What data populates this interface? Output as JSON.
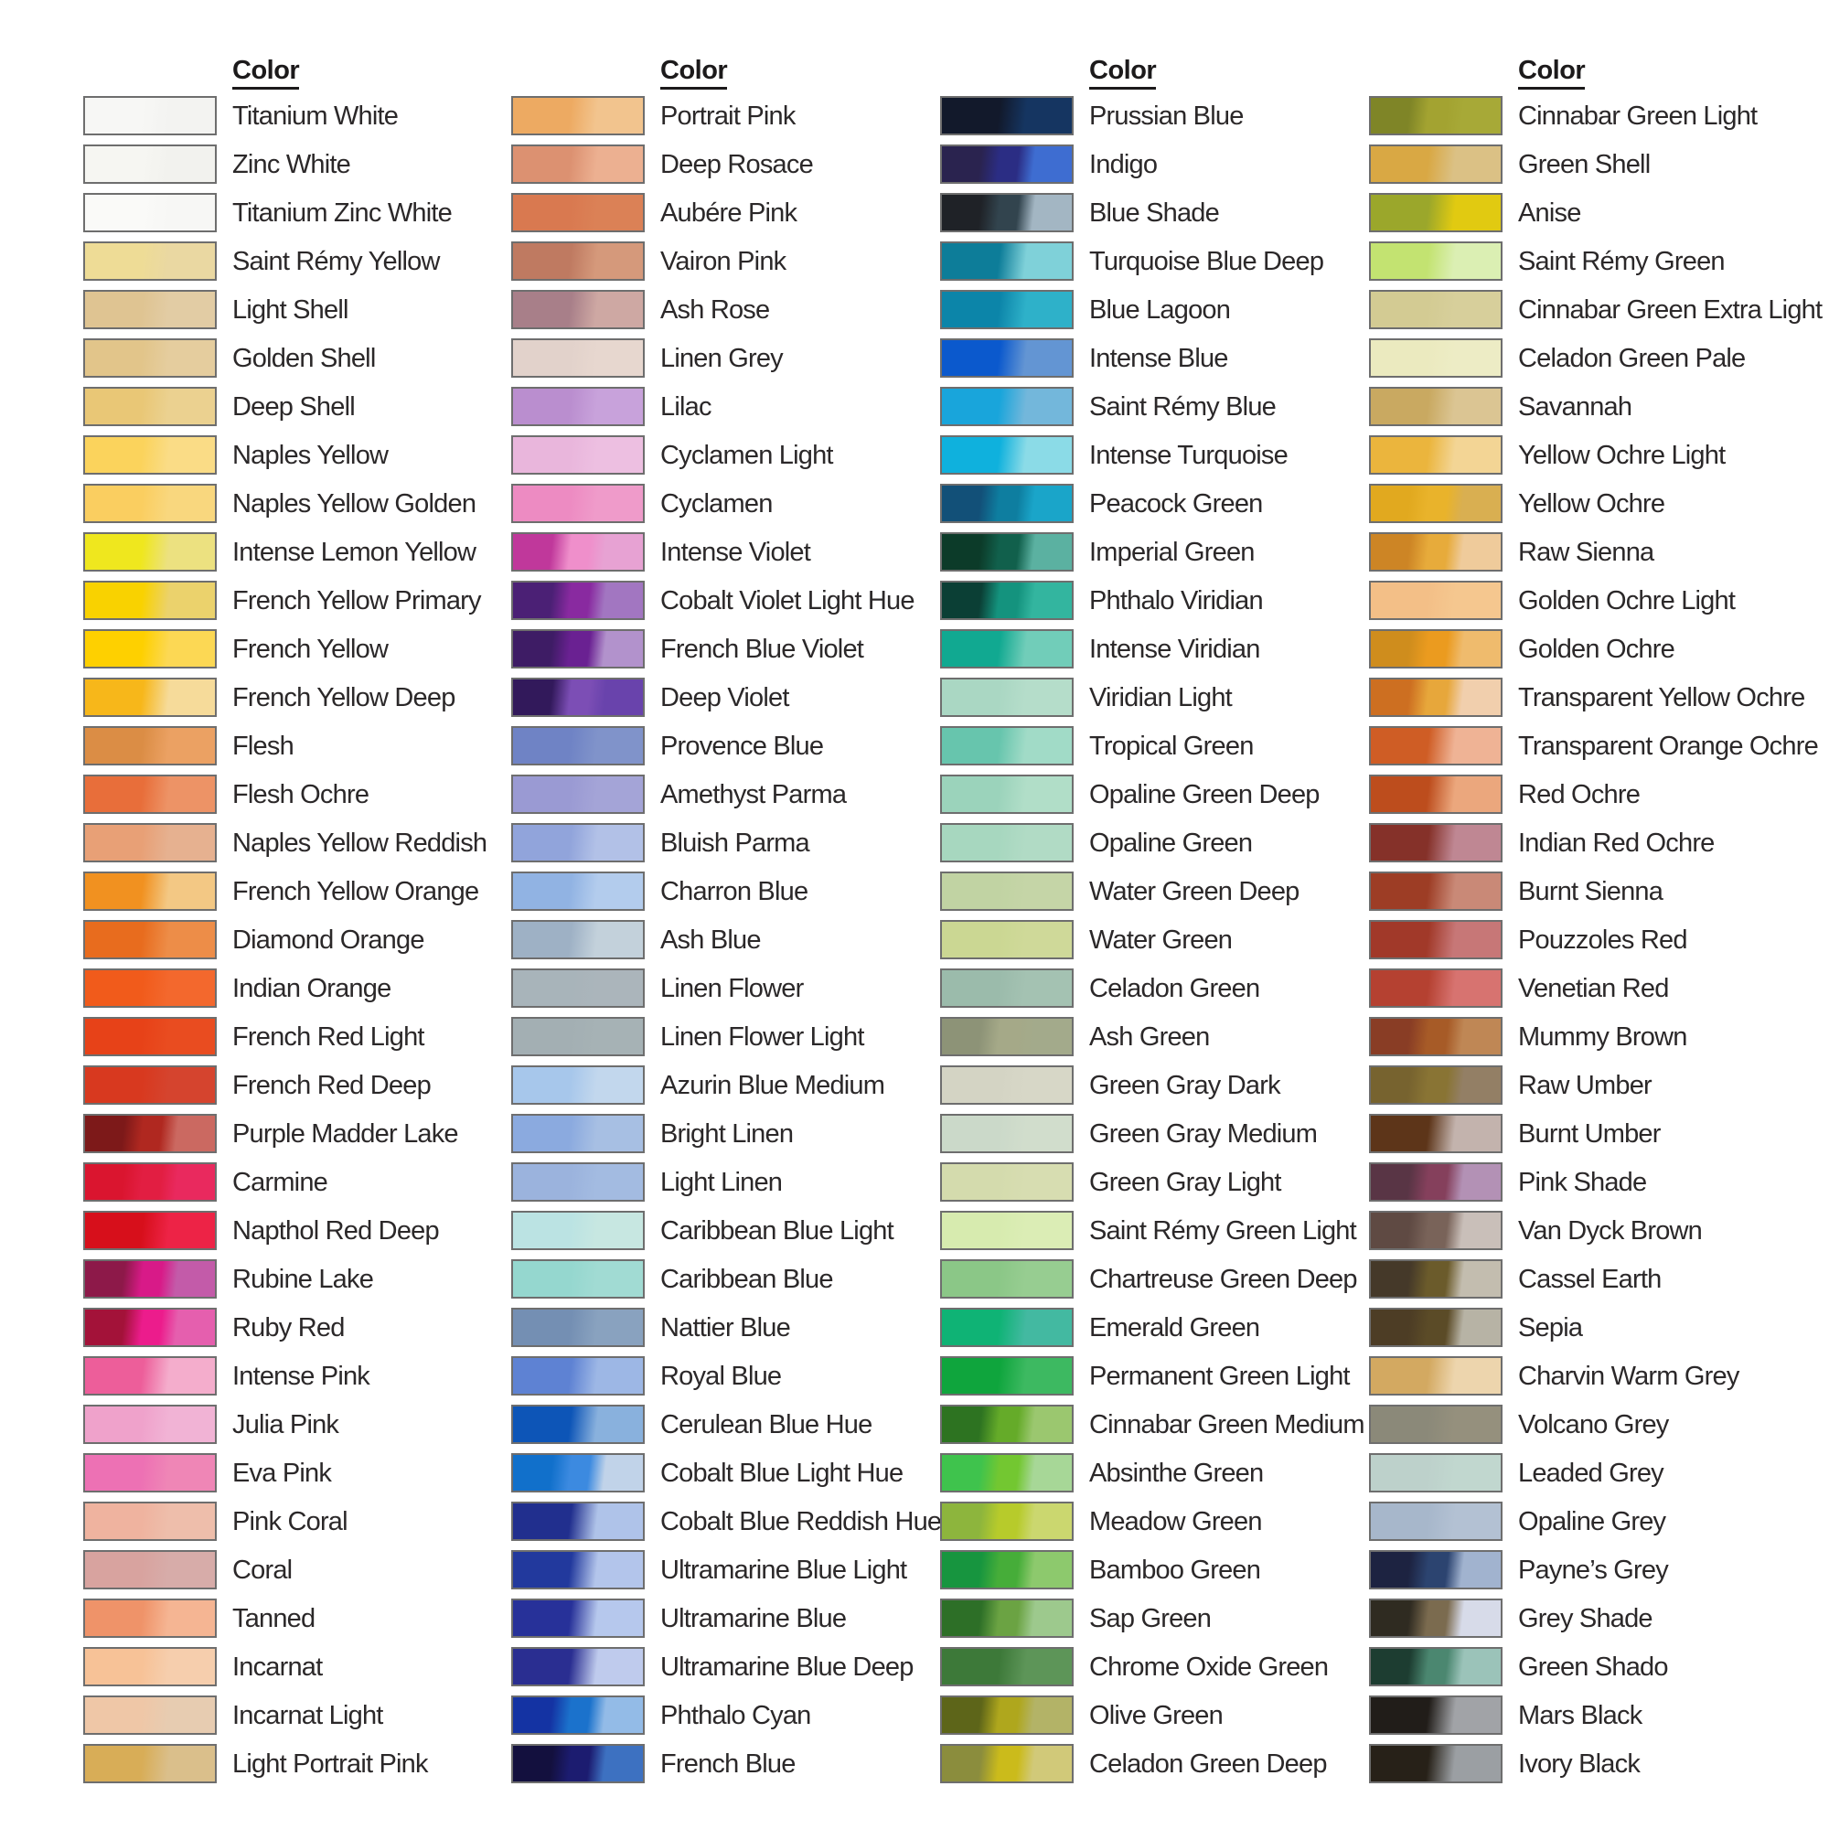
{
  "page": {
    "background": "#ffffff",
    "text_color": "#2b2829",
    "swatch_border_color": "#6e6e6e",
    "header_label": "Color"
  },
  "columns": [
    {
      "header": "Color",
      "rows": [
        {
          "name": "Titanium White",
          "left": "#f7f7f5",
          "right": "#f3f3f1"
        },
        {
          "name": "Zinc White",
          "left": "#f6f6f2",
          "right": "#f2f2ee"
        },
        {
          "name": "Titanium Zinc White",
          "left": "#fafaf8",
          "right": "#f7f7f5"
        },
        {
          "name": "Saint Rémy Yellow",
          "left": "#eedc96",
          "right": "#ead8a2"
        },
        {
          "name": "Light Shell",
          "left": "#dfc492",
          "right": "#e2cca4"
        },
        {
          "name": "Golden Shell",
          "left": "#e2c58a",
          "right": "#e5cd9e"
        },
        {
          "name": "Deep Shell",
          "left": "#e9c776",
          "right": "#ebd190"
        },
        {
          "name": "Naples Yellow",
          "left": "#fbd35c",
          "right": "#fadc86"
        },
        {
          "name": "Naples Yellow Golden",
          "left": "#face60",
          "right": "#f9d77e"
        },
        {
          "name": "Intense Lemon Yellow",
          "left": "#efe71e",
          "right": "#ece180"
        },
        {
          "name": "French Yellow Primary",
          "left": "#f9d200",
          "right": "#ebd26c"
        },
        {
          "name": "French Yellow",
          "left": "#fed000",
          "right": "#fcd854"
        },
        {
          "name": "French Yellow Deep",
          "left": "#f7b71a",
          "right": "#f6db9a"
        },
        {
          "name": "Flesh",
          "left": "#db8d45",
          "right": "#eba163"
        },
        {
          "name": "Flesh Ochre",
          "left": "#e86e3a",
          "right": "#ed9366"
        },
        {
          "name": "Naples Yellow Reddish",
          "left": "#e8a076",
          "right": "#e6b190"
        },
        {
          "name": "French Yellow Orange",
          "left": "#f19120",
          "right": "#f3c884"
        },
        {
          "name": "Diamond Orange",
          "left": "#e86c1e",
          "right": "#ed8d48"
        },
        {
          "name": "Indian Orange",
          "left": "#f15b1b",
          "right": "#f3682d"
        },
        {
          "name": "French Red Light",
          "left": "#e74218",
          "right": "#e94c20"
        },
        {
          "name": "French Red Deep",
          "left": "#d8391f",
          "right": "#d5442e"
        },
        {
          "name": "Purple Madder Lake",
          "left": "#7d1919",
          "mid": "#b02820",
          "right": "#cb6961"
        },
        {
          "name": "Carmine",
          "left": "#da152f",
          "mid": "#e21e42",
          "right": "#e9295e"
        },
        {
          "name": "Napthol Red Deep",
          "left": "#d70f1b",
          "right": "#ed2346"
        },
        {
          "name": "Rubine Lake",
          "left": "#8d1949",
          "mid": "#d81a88",
          "right": "#c35ba9"
        },
        {
          "name": "Ruby Red",
          "left": "#a31239",
          "mid": "#ec1c8c",
          "right": "#e55fae"
        },
        {
          "name": "Intense Pink",
          "left": "#ed5e9a",
          "right": "#f4adcc"
        },
        {
          "name": "Julia Pink",
          "left": "#efa2cb",
          "right": "#f1b3d5"
        },
        {
          "name": "Eva Pink",
          "left": "#ed71b4",
          "right": "#ef86b6"
        },
        {
          "name": "Pink Coral",
          "left": "#efb39f",
          "right": "#eebeab"
        },
        {
          "name": "Coral",
          "left": "#d8a39f",
          "right": "#d7aca9"
        },
        {
          "name": "Tanned",
          "left": "#ef9369",
          "right": "#f5b593"
        },
        {
          "name": "Incarnat",
          "left": "#f7c297",
          "right": "#f6cead"
        },
        {
          "name": "Incarnat Light",
          "left": "#efc7a7",
          "right": "#e7ccb1"
        },
        {
          "name": "Light Portrait Pink",
          "left": "#d8ad57",
          "right": "#dabf8b"
        }
      ]
    },
    {
      "header": "Color",
      "rows": [
        {
          "name": "Portrait Pink",
          "left": "#edaa62",
          "right": "#f2c48e"
        },
        {
          "name": "Deep Rosace",
          "left": "#dc9171",
          "right": "#ecb091"
        },
        {
          "name": "Aubére Pink",
          "left": "#d97950",
          "right": "#db8156"
        },
        {
          "name": "Vairon Pink",
          "left": "#bf7a61",
          "right": "#d5997b"
        },
        {
          "name": "Ash Rose",
          "left": "#a87f89",
          "right": "#cea8a3"
        },
        {
          "name": "Linen Grey",
          "left": "#e2d2cb",
          "right": "#e7d7cf"
        },
        {
          "name": "Lilac",
          "left": "#ba8ecf",
          "right": "#c8a2db"
        },
        {
          "name": "Cyclamen Light",
          "left": "#e9b6dc",
          "right": "#edbfe1"
        },
        {
          "name": "Cyclamen",
          "left": "#ed8bc2",
          "right": "#ef9bca"
        },
        {
          "name": "Intense Violet",
          "left": "#c0389b",
          "mid": "#ef8fcb",
          "right": "#e7a2d3"
        },
        {
          "name": "Cobalt Violet Light Hue",
          "left": "#4b2075",
          "mid": "#892aa0",
          "right": "#a276c1"
        },
        {
          "name": "French Blue Violet",
          "left": "#3e1c65",
          "mid": "#6a2192",
          "right": "#b292cc"
        },
        {
          "name": "Deep Violet",
          "left": "#32195b",
          "mid": "#7c4eb5",
          "right": "#6943ac"
        },
        {
          "name": "Provence Blue",
          "left": "#6f83c5",
          "right": "#8093ca"
        },
        {
          "name": "Amethyst Parma",
          "left": "#9a9ad3",
          "right": "#a4a4d7"
        },
        {
          "name": "Bluish Parma",
          "left": "#91a4db",
          "right": "#b2c1e7"
        },
        {
          "name": "Charron Blue",
          "left": "#91b3e3",
          "right": "#b3cced"
        },
        {
          "name": "Ash Blue",
          "left": "#9eb1c5",
          "right": "#c3d1db"
        },
        {
          "name": "Linen Flower",
          "left": "#a8b4ba",
          "right": "#abb5bb"
        },
        {
          "name": "Linen Flower Light",
          "left": "#a3afb3",
          "right": "#a6b2b5"
        },
        {
          "name": "Azurin Blue Medium",
          "left": "#a7c7eb",
          "right": "#c2d7ed"
        },
        {
          "name": "Bright Linen",
          "left": "#8baadf",
          "right": "#a7bfe3"
        },
        {
          "name": "Light Linen",
          "left": "#9bb3dd",
          "right": "#a3bbe1"
        },
        {
          "name": "Caribbean Blue Light",
          "left": "#bbe3e3",
          "right": "#c7e7e1"
        },
        {
          "name": "Caribbean Blue",
          "left": "#95d7cf",
          "right": "#a1dbd3"
        },
        {
          "name": "Nattier Blue",
          "left": "#748fb3",
          "right": "#89a2bf"
        },
        {
          "name": "Royal Blue",
          "left": "#5e82d3",
          "right": "#9db7e5"
        },
        {
          "name": "Cerulean Blue Hue",
          "left": "#0d55b7",
          "right": "#89b1dd"
        },
        {
          "name": "Cobalt Blue Light Hue",
          "left": "#1170cb",
          "mid": "#3c8ae0",
          "right": "#c1d3e9"
        },
        {
          "name": "Cobalt Blue Reddish Hue",
          "left": "#212f8e",
          "right": "#afc3e9"
        },
        {
          "name": "Ultramarine Blue Light",
          "left": "#22399d",
          "right": "#b3c5eb"
        },
        {
          "name": "Ultramarine Blue",
          "left": "#273199",
          "right": "#b6c8ed"
        },
        {
          "name": "Ultramarine Blue Deep",
          "left": "#2a2e91",
          "right": "#bfcbed"
        },
        {
          "name": "Phthalo Cyan",
          "left": "#1433a3",
          "mid": "#1b72cc",
          "right": "#93bbe7"
        },
        {
          "name": "French Blue",
          "left": "#13103e",
          "mid": "#1c1c70",
          "right": "#3d71c1"
        }
      ]
    },
    {
      "header": "Color",
      "rows": [
        {
          "name": "Prussian Blue",
          "left": "#12192b",
          "right": "#153561"
        },
        {
          "name": "Indigo",
          "left": "#2a234f",
          "mid": "#2b2d84",
          "right": "#3e6dd1"
        },
        {
          "name": "Blue Shade",
          "left": "#1f2227",
          "mid": "#32444e",
          "right": "#a3b6c3"
        },
        {
          "name": "Turquoise Blue Deep",
          "left": "#0d7d99",
          "right": "#7fd1d9"
        },
        {
          "name": "Blue Lagoon",
          "left": "#0c85a9",
          "right": "#2eb1c9"
        },
        {
          "name": "Intense Blue",
          "left": "#0b59cd",
          "right": "#6395d3"
        },
        {
          "name": "Saint Rémy Blue",
          "left": "#19a5db",
          "right": "#73b7db"
        },
        {
          "name": "Intense Turquoise",
          "left": "#0fb1dd",
          "right": "#8bdbe7"
        },
        {
          "name": "Peacock Green",
          "left": "#125078",
          "mid": "#0e7ea0",
          "right": "#1aa5c9"
        },
        {
          "name": "Imperial Green",
          "left": "#0c3b29",
          "mid": "#11604c",
          "right": "#5bb1a1"
        },
        {
          "name": "Phthalo Viridian",
          "left": "#0b3f35",
          "mid": "#14937e",
          "right": "#33b59f"
        },
        {
          "name": "Intense Viridian",
          "left": "#11a991",
          "right": "#71cdb9"
        },
        {
          "name": "Viridian Light",
          "left": "#aad7c3",
          "right": "#b5ddca"
        },
        {
          "name": "Tropical Green",
          "left": "#67c5ad",
          "right": "#a1dbc7"
        },
        {
          "name": "Opaline Green Deep",
          "left": "#9bd3bb",
          "right": "#b1dec8"
        },
        {
          "name": "Opaline Green",
          "left": "#a7d7bf",
          "right": "#b1dbc5"
        },
        {
          "name": "Water Green Deep",
          "left": "#c1d3a3",
          "right": "#c5d5a7"
        },
        {
          "name": "Water Green",
          "left": "#cbd793",
          "right": "#cfd999"
        },
        {
          "name": "Celadon Green",
          "left": "#9bbbab",
          "right": "#a4c2b2"
        },
        {
          "name": "Ash Green",
          "left": "#8d9377",
          "mid": "#a5a988",
          "right": "#a3aa8b"
        },
        {
          "name": "Green Gray Dark",
          "left": "#d4d4c4",
          "right": "#d7d7c7"
        },
        {
          "name": "Green Gray Medium",
          "left": "#cbd9c9",
          "right": "#d1ddcc"
        },
        {
          "name": "Green Gray Light",
          "left": "#d4dbad",
          "right": "#d7ddb1"
        },
        {
          "name": "Saint Rémy Green Light",
          "left": "#d7ebaf",
          "right": "#dbedb5"
        },
        {
          "name": "Chartreuse Green Deep",
          "left": "#8bc787",
          "right": "#97cd91"
        },
        {
          "name": "Emerald Green",
          "left": "#0fb375",
          "right": "#43b9a1"
        },
        {
          "name": "Permanent Green Light",
          "left": "#0fa53d",
          "right": "#3db961"
        },
        {
          "name": "Cinnabar Green Medium",
          "left": "#2d7321",
          "mid": "#65ab29",
          "right": "#9bc76f"
        },
        {
          "name": "Absinthe Green",
          "left": "#3fc34d",
          "mid": "#73c731",
          "right": "#a7d797"
        },
        {
          "name": "Meadow Green",
          "left": "#8db53d",
          "mid": "#b7cb2b",
          "right": "#cbd76f"
        },
        {
          "name": "Bamboo Green",
          "left": "#17953f",
          "mid": "#46ad39",
          "right": "#8dc96d"
        },
        {
          "name": "Sap Green",
          "left": "#2d6f27",
          "mid": "#6ba343",
          "right": "#9dc98d"
        },
        {
          "name": "Chrome Oxide Green",
          "left": "#3d7939",
          "right": "#5d9558"
        },
        {
          "name": "Olive Green",
          "left": "#5d6519",
          "mid": "#afa71d",
          "right": "#b3b367"
        },
        {
          "name": "Celadon Green Deep",
          "left": "#8b8d3d",
          "mid": "#cbbb1b",
          "right": "#d1c979"
        }
      ]
    },
    {
      "header": "Color",
      "rows": [
        {
          "name": "Cinnabar Green Light",
          "left": "#7f8527",
          "mid": "#a3a331",
          "right": "#a7a937"
        },
        {
          "name": "Green Shell",
          "left": "#d9a844",
          "right": "#dbc185"
        },
        {
          "name": "Anise",
          "left": "#9ba72b",
          "right": "#e1ca11"
        },
        {
          "name": "Saint Rémy Green",
          "left": "#c3e371",
          "right": "#dbefb3"
        },
        {
          "name": "Cinnabar Green Extra Light",
          "left": "#d3cb93",
          "right": "#d7cf9b"
        },
        {
          "name": "Celadon Green Pale",
          "left": "#ebeabf",
          "right": "#edecc5"
        },
        {
          "name": "Savannah",
          "left": "#c9a961",
          "right": "#dbc593"
        },
        {
          "name": "Yellow Ochre Light",
          "left": "#ebb53d",
          "right": "#f3d595"
        },
        {
          "name": "Yellow Ochre",
          "left": "#e1a91f",
          "mid": "#e9b32b",
          "right": "#d9af51"
        },
        {
          "name": "Raw Sienna",
          "left": "#cd8525",
          "mid": "#e7ab3b",
          "right": "#efcb9b"
        },
        {
          "name": "Golden Ochre Light",
          "left": "#f3bf87",
          "right": "#f5c78f"
        },
        {
          "name": "Golden Ochre",
          "left": "#cf8d1d",
          "mid": "#eb9b1f",
          "right": "#efbb6d"
        },
        {
          "name": "Transparent Yellow Ochre",
          "left": "#cd6f21",
          "mid": "#e7a73b",
          "right": "#f1cfad"
        },
        {
          "name": "Transparent Orange Ochre",
          "left": "#cf5d25",
          "right": "#efb395"
        },
        {
          "name": "Red Ochre",
          "left": "#bd4d1d",
          "right": "#eba77d"
        },
        {
          "name": "Indian Red Ochre",
          "left": "#853129",
          "right": "#bf8793"
        },
        {
          "name": "Burnt Sienna",
          "left": "#9d3d25",
          "right": "#c98977"
        },
        {
          "name": "Pouzzoles Red",
          "left": "#a13929",
          "right": "#c77777"
        },
        {
          "name": "Venetian Red",
          "left": "#b54131",
          "right": "#d77370"
        },
        {
          "name": "Mummy Brown",
          "left": "#893d25",
          "mid": "#a75b27",
          "right": "#bf8755"
        },
        {
          "name": "Raw Umber",
          "left": "#77632f",
          "mid": "#897434",
          "right": "#937f65"
        },
        {
          "name": "Burnt Umber",
          "left": "#5d3519",
          "right": "#c3b3ad"
        },
        {
          "name": "Pink Shade",
          "left": "#593545",
          "mid": "#85405c",
          "right": "#b391b5"
        },
        {
          "name": "Van Dyck Brown",
          "left": "#5f4a43",
          "mid": "#796359",
          "right": "#c9bfb9"
        },
        {
          "name": "Cassel Earth",
          "left": "#453929",
          "mid": "#6b5b2b",
          "right": "#c3bdaf"
        },
        {
          "name": "Sepia",
          "left": "#4d3d25",
          "mid": "#5b4b27",
          "right": "#b7b3a5"
        },
        {
          "name": "Charvin Warm Grey",
          "left": "#d3a961",
          "right": "#edd5ad"
        },
        {
          "name": "Volcano Grey",
          "left": "#8b8979",
          "right": "#95907d"
        },
        {
          "name": "Leaded Grey",
          "left": "#bdd1cb",
          "right": "#c1d7cf"
        },
        {
          "name": "Opaline Grey",
          "left": "#a7b7cb",
          "right": "#b3c1d3"
        },
        {
          "name": "Payne’s Grey",
          "left": "#1d2341",
          "mid": "#2c4470",
          "right": "#a1b3cf"
        },
        {
          "name": "Grey Shade",
          "left": "#2f2b21",
          "mid": "#7b6b4f",
          "right": "#d7dbe9"
        },
        {
          "name": "Green Shado",
          "left": "#1d3d31",
          "mid": "#4b8770",
          "right": "#9bc3b9"
        },
        {
          "name": "Mars Black",
          "left": "#211d19",
          "right": "#a1a3a7"
        },
        {
          "name": "Ivory Black",
          "left": "#272118",
          "right": "#9b9fa3"
        }
      ]
    }
  ]
}
